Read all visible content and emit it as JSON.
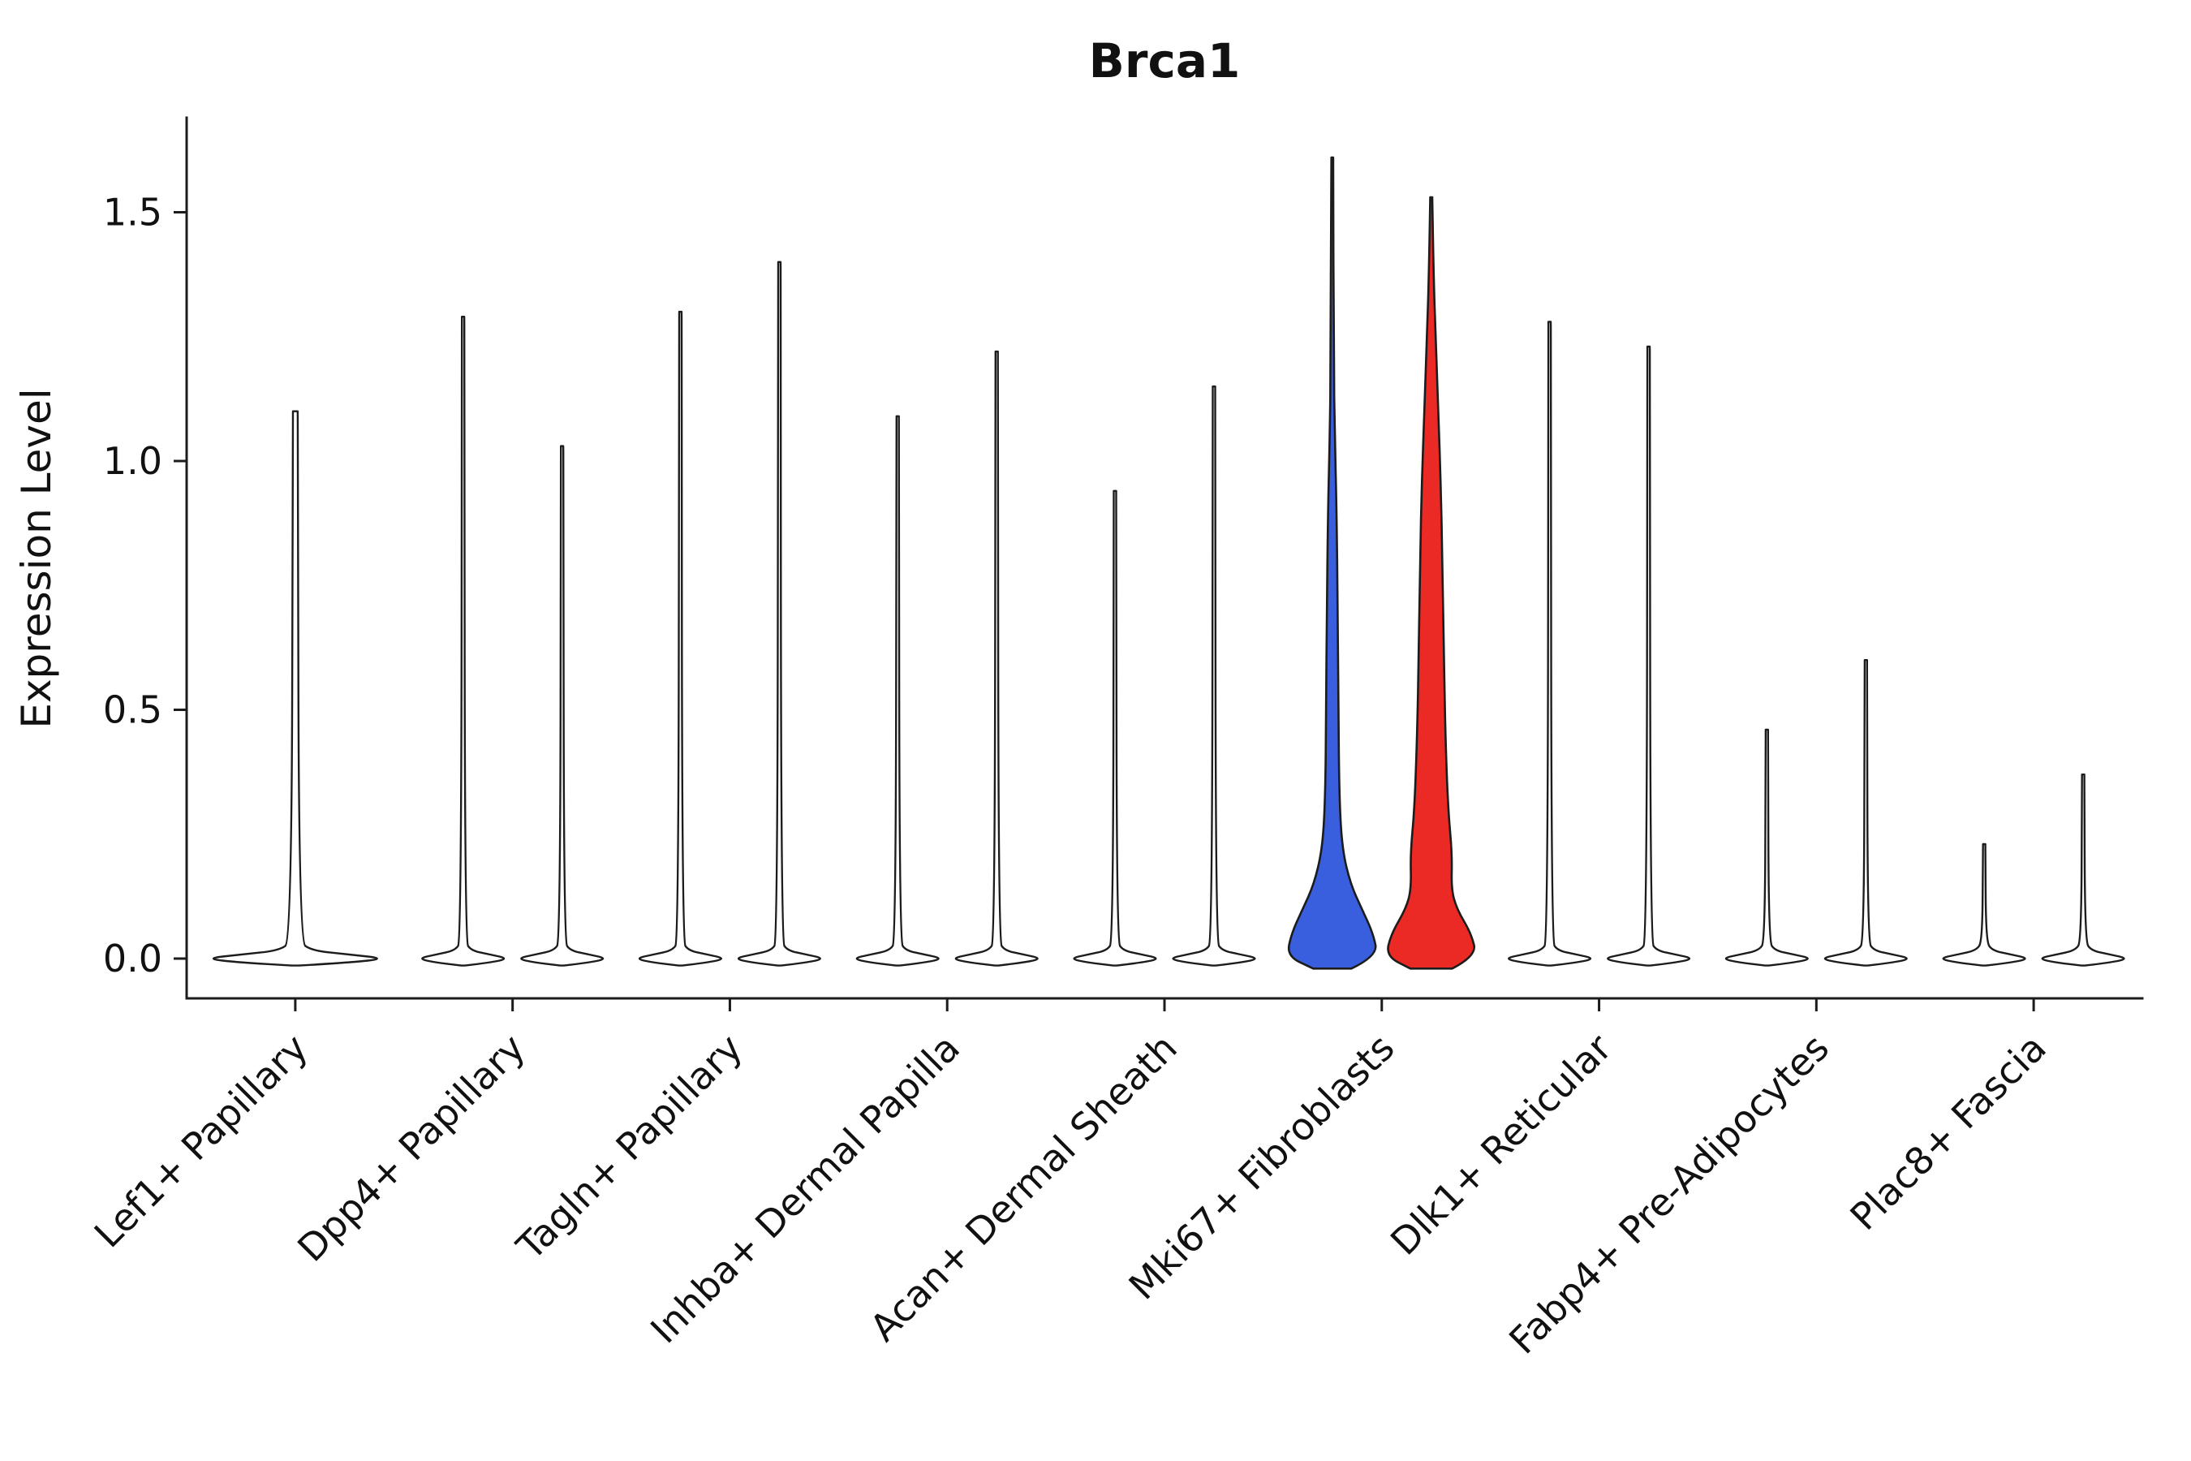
{
  "chart_data": {
    "type": "violin",
    "title": "Brca1",
    "ylabel": "Expression Level",
    "xlabel": "",
    "grid": false,
    "legend": "none",
    "ylim": [
      -0.07,
      1.68
    ],
    "yticks": [
      0.0,
      0.5,
      1.0,
      1.5
    ],
    "ytick_labels": [
      "0.0",
      "0.5",
      "1.0",
      "1.5"
    ],
    "colors": {
      "outline": "#1C1C1C",
      "highlight_blue": "#3A5FDE",
      "highlight_red": "#EC2A25",
      "default_fill": "#FFFFFF"
    },
    "categories": [
      "Lef1+ Papillary",
      "Dpp4+ Papillary",
      "Tagln+ Papillary",
      "Inhba+ Dermal Papilla",
      "Acan+ Dermal Sheath",
      "Mki67+ Fibroblasts",
      "Dlk1+ Reticular",
      "Fabp4+ Pre-Adipocytes",
      "Plac8+ Fascia"
    ],
    "violins": [
      {
        "category": "Lef1+ Papillary",
        "position": "center",
        "max": 1.1,
        "style": "spike",
        "fill": "#FFFFFF",
        "width_scale": 2
      },
      {
        "category": "Dpp4+ Papillary",
        "position": "left",
        "max": 1.29,
        "style": "spike",
        "fill": "#FFFFFF"
      },
      {
        "category": "Dpp4+ Papillary",
        "position": "right",
        "max": 1.03,
        "style": "spike",
        "fill": "#FFFFFF"
      },
      {
        "category": "Tagln+ Papillary",
        "position": "left",
        "max": 1.3,
        "style": "spike",
        "fill": "#FFFFFF"
      },
      {
        "category": "Tagln+ Papillary",
        "position": "right",
        "max": 1.4,
        "style": "spike",
        "fill": "#FFFFFF"
      },
      {
        "category": "Inhba+ Dermal Papilla",
        "position": "left",
        "max": 1.09,
        "style": "spike",
        "fill": "#FFFFFF"
      },
      {
        "category": "Inhba+ Dermal Papilla",
        "position": "right",
        "max": 1.22,
        "style": "spike",
        "fill": "#FFFFFF"
      },
      {
        "category": "Acan+ Dermal Sheath",
        "position": "left",
        "max": 0.94,
        "style": "spike",
        "fill": "#FFFFFF"
      },
      {
        "category": "Acan+ Dermal Sheath",
        "position": "right",
        "max": 1.15,
        "style": "spike",
        "fill": "#FFFFFF"
      },
      {
        "category": "Mki67+ Fibroblasts",
        "position": "left",
        "max": 1.61,
        "style": "body-blue",
        "fill": "#3A5FDE"
      },
      {
        "category": "Mki67+ Fibroblasts",
        "position": "right",
        "max": 1.53,
        "style": "body-red",
        "fill": "#EC2A25"
      },
      {
        "category": "Dlk1+ Reticular",
        "position": "left",
        "max": 1.28,
        "style": "spike",
        "fill": "#FFFFFF"
      },
      {
        "category": "Dlk1+ Reticular",
        "position": "right",
        "max": 1.23,
        "style": "spike",
        "fill": "#FFFFFF"
      },
      {
        "category": "Fabp4+ Pre-Adipocytes",
        "position": "left",
        "max": 0.46,
        "style": "spike",
        "fill": "#FFFFFF"
      },
      {
        "category": "Fabp4+ Pre-Adipocytes",
        "position": "right",
        "max": 0.6,
        "style": "spike",
        "fill": "#FFFFFF"
      },
      {
        "category": "Plac8+ Fascia",
        "position": "left",
        "max": 0.23,
        "style": "spike",
        "fill": "#FFFFFF"
      },
      {
        "category": "Plac8+ Fascia",
        "position": "right",
        "max": 0.37,
        "style": "spike",
        "fill": "#FFFFFF"
      }
    ]
  }
}
